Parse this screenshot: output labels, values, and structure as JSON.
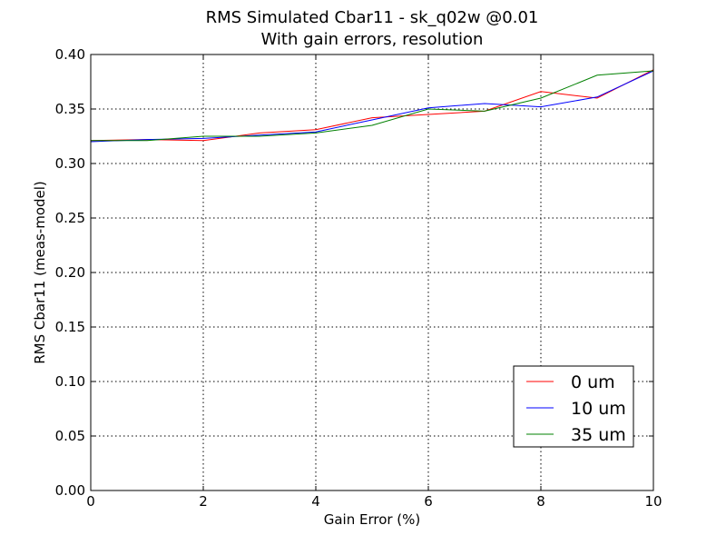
{
  "chart_data": {
    "type": "line",
    "title": "RMS Simulated Cbar11 - sk_q02w @0.01",
    "subtitle": "With gain errors, resolution",
    "xlabel": "Gain Error (%)",
    "ylabel": "RMS Cbar11 (meas-model)",
    "xlim": [
      0,
      10
    ],
    "ylim": [
      0.0,
      0.4
    ],
    "x_ticks": [
      "0",
      "2",
      "4",
      "6",
      "8",
      "10"
    ],
    "y_ticks": [
      "0.00",
      "0.05",
      "0.10",
      "0.15",
      "0.20",
      "0.25",
      "0.30",
      "0.35",
      "0.40"
    ],
    "grid": true,
    "legend_position": "lower-right",
    "x": [
      0,
      1,
      2,
      3,
      4,
      5,
      6,
      7,
      8,
      9,
      10
    ],
    "series": [
      {
        "name": "0 um",
        "color": "#ff0000",
        "values": [
          0.321,
          0.322,
          0.321,
          0.328,
          0.331,
          0.342,
          0.345,
          0.348,
          0.366,
          0.36,
          0.386
        ]
      },
      {
        "name": "10 um",
        "color": "#0000ff",
        "values": [
          0.32,
          0.322,
          0.323,
          0.326,
          0.329,
          0.34,
          0.351,
          0.355,
          0.352,
          0.361,
          0.385
        ]
      },
      {
        "name": "35 um",
        "color": "#008000",
        "values": [
          0.321,
          0.321,
          0.325,
          0.325,
          0.328,
          0.335,
          0.35,
          0.348,
          0.36,
          0.381,
          0.385
        ]
      }
    ]
  }
}
